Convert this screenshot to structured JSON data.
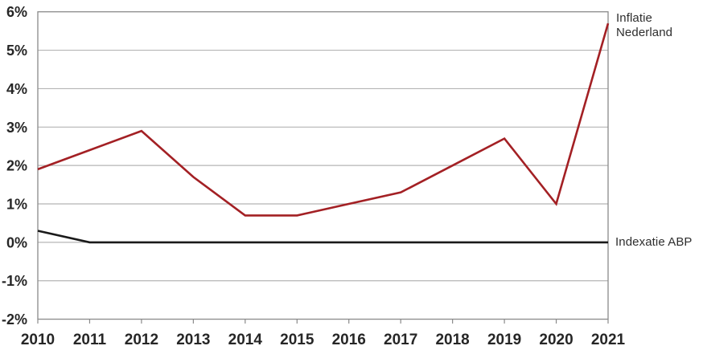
{
  "chart_data": {
    "type": "line",
    "title": "",
    "xlabel": "",
    "ylabel": "",
    "x": [
      "2010",
      "2011",
      "2012",
      "2013",
      "2014",
      "2015",
      "2016",
      "2017",
      "2018",
      "2019",
      "2020",
      "2021"
    ],
    "series": [
      {
        "name": "Inflatie Nederland",
        "color": "#a32024",
        "values": [
          1.9,
          2.4,
          2.9,
          1.7,
          0.7,
          0.7,
          1.0,
          1.3,
          2.0,
          2.7,
          1.0,
          5.7
        ]
      },
      {
        "name": "Indexatie ABP",
        "color": "#1a1a1a",
        "values": [
          0.3,
          0,
          0,
          0,
          0,
          0,
          0,
          0,
          0,
          0,
          0,
          0
        ]
      }
    ],
    "ylim": [
      -2,
      6
    ],
    "y_ticks": [
      6,
      5,
      4,
      3,
      2,
      1,
      0,
      -1,
      -2
    ],
    "y_tick_labels": [
      "6%",
      "5%",
      "4%",
      "3%",
      "2%",
      "1%",
      "0%",
      "-1%",
      "-2%"
    ],
    "grid": true,
    "legend_position": "right-of-plot",
    "colors": {
      "gridline": "#b5b5b5",
      "border": "#8a8a8a",
      "tick_text": "#262626",
      "background": "#ffffff"
    }
  }
}
